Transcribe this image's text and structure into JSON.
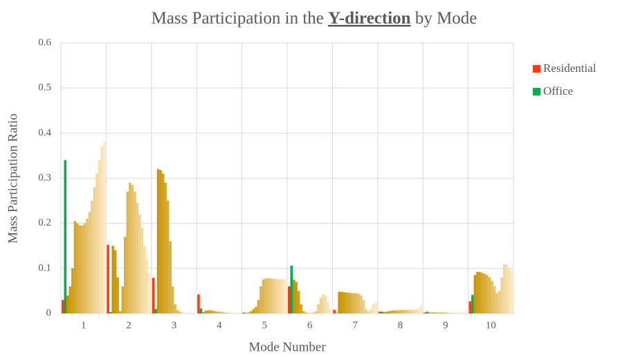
{
  "chart_data": {
    "type": "bar",
    "title": {
      "before": "Mass Participation in the ",
      "emphasis": "Y-direction",
      "after": " by Mode"
    },
    "x_label": "Mode Number",
    "y_label": "Mass Participation Ratio",
    "categories": [
      "1",
      "2",
      "3",
      "4",
      "5",
      "6",
      "7",
      "8",
      "9",
      "10"
    ],
    "series": [
      {
        "name": "Residential",
        "color": "#ff3d0a",
        "values": [
          0.03,
          0.152,
          0.079,
          0.042,
          0.002,
          0.06,
          0.008,
          0.004,
          0.002,
          0.027
        ]
      },
      {
        "name": "Office",
        "color": "#00b050",
        "values": [
          0.34,
          0.003,
          0.01,
          0.011,
          0.001,
          0.106,
          0.001,
          0.004,
          0.004,
          0.041
        ]
      },
      {
        "colors": [
          "#c99400",
          "#fde8c4"
        ],
        "values": [
          [
            0.04,
            0.06,
            0.1,
            0.205,
            0.2,
            0.195,
            0.195,
            0.2,
            0.21,
            0.225,
            0.25,
            0.28,
            0.31,
            0.34,
            0.37,
            0.38
          ],
          [
            0.15,
            0.14,
            0.08,
            0.005,
            0.06,
            0.17,
            0.27,
            0.29,
            0.285,
            0.27,
            0.245,
            0.22,
            0.19,
            0.15,
            0.12,
            0.09
          ],
          [
            0.32,
            0.318,
            0.31,
            0.29,
            0.25,
            0.16,
            0.06,
            0.02,
            0.008,
            0.004,
            0.002,
            0.001,
            0.001,
            0.001,
            0.001,
            0.001
          ],
          [
            0.003,
            0.006,
            0.007,
            0.007,
            0.006,
            0.005,
            0.004,
            0.004,
            0.003,
            0.002,
            0.002,
            0.001,
            0.001,
            0.001,
            0.001,
            0.001
          ],
          [
            0.002,
            0.005,
            0.01,
            0.015,
            0.03,
            0.06,
            0.075,
            0.078,
            0.078,
            0.078,
            0.077,
            0.077,
            0.076,
            0.076,
            0.076,
            0.076
          ],
          [
            0.075,
            0.07,
            0.05,
            0.02,
            0.005,
            0.002,
            0.001,
            0.001,
            0.002,
            0.005,
            0.02,
            0.035,
            0.042,
            0.038,
            0.025,
            0.01
          ],
          [
            0.048,
            0.048,
            0.047,
            0.046,
            0.046,
            0.045,
            0.045,
            0.045,
            0.044,
            0.04,
            0.03,
            0.01,
            0.005,
            0.01,
            0.02,
            0.025
          ],
          [
            0.003,
            0.004,
            0.005,
            0.006,
            0.007,
            0.007,
            0.007,
            0.008,
            0.008,
            0.008,
            0.008,
            0.008,
            0.008,
            0.009,
            0.01,
            0.017
          ],
          [
            0.002,
            0.002,
            0.002,
            0.002,
            0.002,
            0.002,
            0.002,
            0.002,
            0.001,
            0.001,
            0.001,
            0.001,
            0.001,
            0.001,
            0.001,
            0.001
          ],
          [
            0.085,
            0.092,
            0.092,
            0.09,
            0.088,
            0.085,
            0.08,
            0.072,
            0.06,
            0.045,
            0.05,
            0.08,
            0.11,
            0.108,
            0.1,
            0.095
          ]
        ]
      }
    ],
    "ylim": [
      0,
      0.6
    ],
    "yticks": [
      0,
      0.1,
      0.2,
      0.3,
      0.4,
      0.5,
      0.6
    ],
    "grid": true,
    "legend": "right"
  }
}
